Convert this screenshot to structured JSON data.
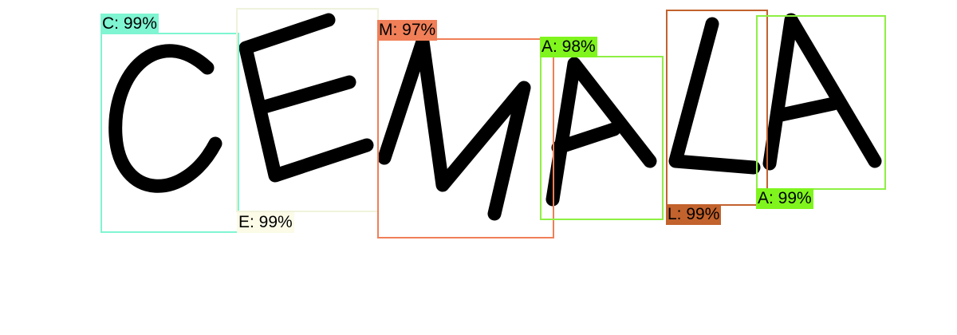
{
  "detections": [
    {
      "char": "C",
      "confidence": "99%",
      "label": "C: 99%",
      "color": "#7ff5d2",
      "label_color": "#7ff5d2"
    },
    {
      "char": "E",
      "confidence": "99%",
      "label": "E: 99%",
      "color": "#f0f2dc",
      "label_color": "#fbfbe8"
    },
    {
      "char": "M",
      "confidence": "97%",
      "label": "M: 97%",
      "color": "#f07f58",
      "label_color": "#f07f58"
    },
    {
      "char": "A",
      "confidence": "98%",
      "label": "A: 98%",
      "color": "#8ef043",
      "label_color": "#7ff51d"
    },
    {
      "char": "L",
      "confidence": "99%",
      "label": "L: 99%",
      "color": "#c2622d",
      "label_color": "#c2622d"
    },
    {
      "char": "A",
      "confidence": "99%",
      "label": "A: 99%",
      "color": "#8ef043",
      "label_color": "#7ff51d"
    }
  ]
}
